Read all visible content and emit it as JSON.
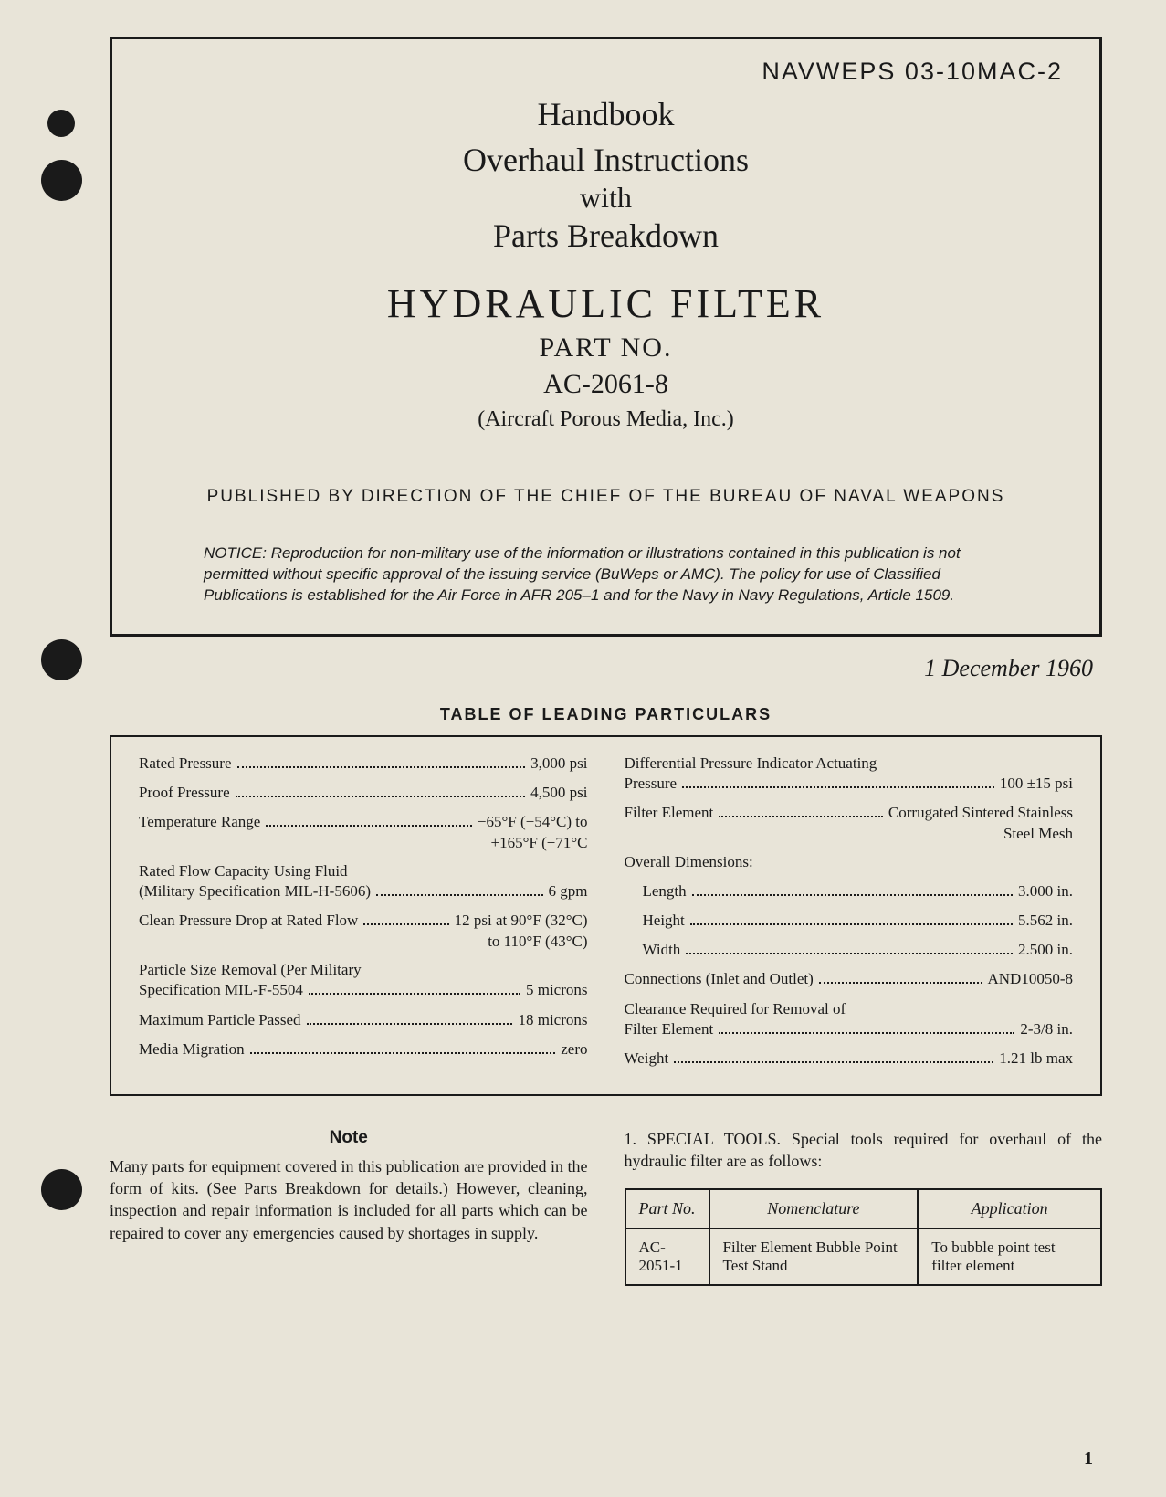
{
  "document_id": "NAVWEPS 03-10MAC-2",
  "title": {
    "line1": "Handbook",
    "line2": "Overhaul Instructions",
    "line3": "with",
    "line4": "Parts Breakdown",
    "main": "HYDRAULIC FILTER",
    "part_label": "PART NO.",
    "part_no": "AC-2061-8",
    "manufacturer": "(Aircraft Porous Media, Inc.)"
  },
  "published_by": "PUBLISHED BY DIRECTION OF THE CHIEF OF THE BUREAU OF NAVAL WEAPONS",
  "notice": {
    "label": "NOTICE:",
    "text": "Reproduction for non-military use of the information or illustrations contained in this publication is not permitted without specific approval of the issuing service (BuWeps or AMC). The policy for use of Classified Publications is established for the Air Force in AFR 205–1 and for the Navy in Navy Regulations, Article 1509."
  },
  "date": "1 December 1960",
  "particulars": {
    "title": "TABLE OF LEADING PARTICULARS",
    "left": [
      {
        "label": "Rated Pressure",
        "value": "3,000 psi"
      },
      {
        "label": "Proof Pressure",
        "value": "4,500 psi"
      },
      {
        "label": "Temperature Range",
        "value": "−65°F (−54°C) to",
        "value2": "+165°F (+71°C"
      },
      {
        "label": "Rated Flow Capacity Using Fluid",
        "label2": "(Military Specification MIL-H-5606)",
        "value": "6 gpm"
      },
      {
        "label": "Clean Pressure Drop at Rated Flow",
        "value": "12 psi at 90°F (32°C)",
        "value2": "to 110°F (43°C)"
      },
      {
        "label": "Particle Size Removal (Per Military",
        "label2": "Specification MIL-F-5504",
        "value": "5 microns"
      },
      {
        "label": "Maximum Particle Passed",
        "value": "18 microns"
      },
      {
        "label": "Media Migration",
        "value": "zero"
      }
    ],
    "right": [
      {
        "label": "Differential Pressure Indicator Actuating",
        "label2": "Pressure",
        "value": "100 ±15 psi"
      },
      {
        "label": "Filter Element",
        "value": "Corrugated Sintered Stainless",
        "value2": "Steel Mesh"
      },
      {
        "heading": "Overall Dimensions:"
      },
      {
        "label": "Length",
        "value": "3.000 in.",
        "indent": true
      },
      {
        "label": "Height",
        "value": "5.562 in.",
        "indent": true
      },
      {
        "label": "Width",
        "value": "2.500 in.",
        "indent": true
      },
      {
        "label": "Connections (Inlet and Outlet)",
        "value": "AND10050-8"
      },
      {
        "label": "Clearance Required for Removal of",
        "label2": "Filter Element",
        "value": "2-3/8 in."
      },
      {
        "label": "Weight",
        "value": "1.21 lb max"
      }
    ]
  },
  "note": {
    "heading": "Note",
    "text": "Many parts for equipment covered in this publication are provided in the form of kits. (See Parts Breakdown for details.) However, cleaning, inspection and repair information is included for all parts which can be repaired to cover any emergencies caused by shortages in supply."
  },
  "special_tools": {
    "intro": "1. SPECIAL TOOLS. Special tools required for overhaul of the hydraulic filter are as follows:",
    "headers": {
      "part_no": "Part No.",
      "nomenclature": "Nomenclature",
      "application": "Application"
    },
    "rows": [
      {
        "part_no": "AC-2051-1",
        "nomenclature": "Filter Element Bubble Point Test Stand",
        "application": "To bubble point test filter element"
      }
    ]
  },
  "page_number": "1",
  "colors": {
    "bg": "#e8e4d8",
    "text": "#1a1a1a",
    "border": "#1a1a1a"
  }
}
